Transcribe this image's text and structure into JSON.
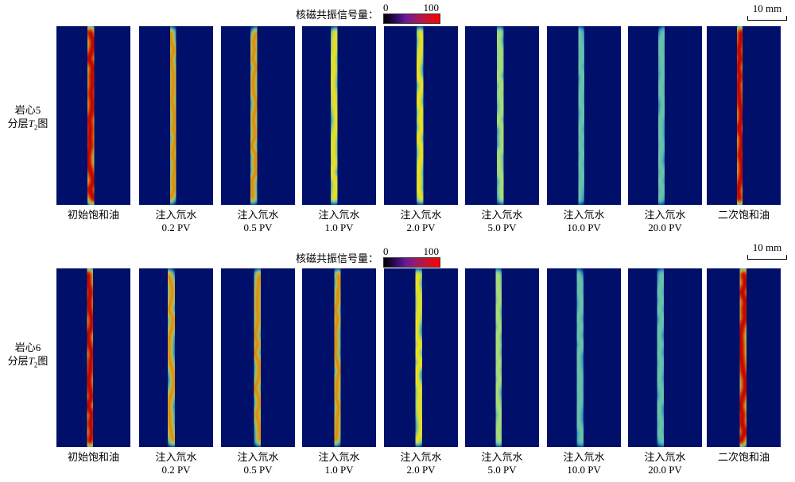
{
  "legend_label": "核磁共振信号量：",
  "legend_min": "0",
  "legend_max": "100",
  "scale_bar": "10 mm",
  "rows": [
    {
      "label_line1": "岩心5",
      "label_line2_prefix": "分层",
      "label_T": "T",
      "label_sub": "2",
      "label_suffix": "图"
    },
    {
      "label_line1": "岩心6",
      "label_line2_prefix": "分层",
      "label_T": "T",
      "label_sub": "2",
      "label_suffix": "图"
    }
  ],
  "captions": [
    {
      "line1": "初始饱和油",
      "line2": ""
    },
    {
      "line1": "注入氘水",
      "line2": "0.2 PV"
    },
    {
      "line1": "注入氘水",
      "line2": "0.5 PV"
    },
    {
      "line1": "注入氘水",
      "line2": "1.0 PV"
    },
    {
      "line1": "注入氘水",
      "line2": "2.0 PV"
    },
    {
      "line1": "注入氘水",
      "line2": "5.0 PV"
    },
    {
      "line1": "注入氘水",
      "line2": "10.0 PV"
    },
    {
      "line1": "注入氘水",
      "line2": "20.0 PV"
    },
    {
      "line1": "二次饱和油",
      "line2": ""
    }
  ],
  "signal_levels": [
    [
      95,
      80,
      70,
      60,
      50,
      35,
      30,
      28,
      95
    ],
    [
      95,
      80,
      75,
      65,
      55,
      35,
      30,
      28,
      95
    ]
  ],
  "colors": {
    "background": "#00106a",
    "low": "#1e9bd7",
    "mid": "#7fe0c0",
    "high": "#ffe000",
    "peak": "#c00000"
  }
}
